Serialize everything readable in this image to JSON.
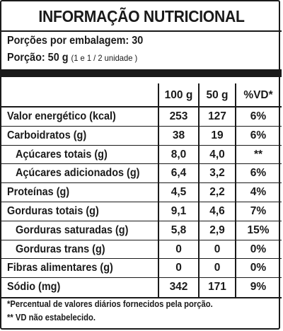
{
  "title": "INFORMAÇÃO NUTRICIONAL",
  "servings_per_package": "Porções por embalagem: 30",
  "serving_size_main": "Porção: 50 g",
  "serving_size_detail": "(1 e 1 / 2 unidade )",
  "columns": [
    "100 g",
    "50 g",
    "%VD*"
  ],
  "rows": [
    {
      "label": "Valor energético (kcal)",
      "per100": "253",
      "per50": "127",
      "vd": "6%"
    },
    {
      "label": "Carboidratos (g)",
      "per100": "38",
      "per50": "19",
      "vd": "6%"
    },
    {
      "label": "Açúcares totais (g)",
      "per100": "8,0",
      "per50": "4,0",
      "vd": "**"
    },
    {
      "label": "Açúcares adicionados (g)",
      "per100": "6,4",
      "per50": "3,2",
      "vd": "6%"
    },
    {
      "label": "Proteínas (g)",
      "per100": "4,5",
      "per50": "2,2",
      "vd": "4%"
    },
    {
      "label": "Gorduras totais (g)",
      "per100": "9,1",
      "per50": "4,6",
      "vd": "7%"
    },
    {
      "label": "Gorduras saturadas (g)",
      "per100": "5,8",
      "per50": "2,9",
      "vd": "15%"
    },
    {
      "label": "Gorduras trans (g)",
      "per100": "0",
      "per50": "0",
      "vd": "0%"
    },
    {
      "label": "Fibras alimentares (g)",
      "per100": "0",
      "per50": "0",
      "vd": "0%"
    },
    {
      "label": "Sódio (mg)",
      "per100": "342",
      "per50": "171",
      "vd": "9%"
    }
  ],
  "footnotes": [
    "*Percentual de valores diários fornecidos pela porção.",
    "** VD não estabelecido."
  ]
}
